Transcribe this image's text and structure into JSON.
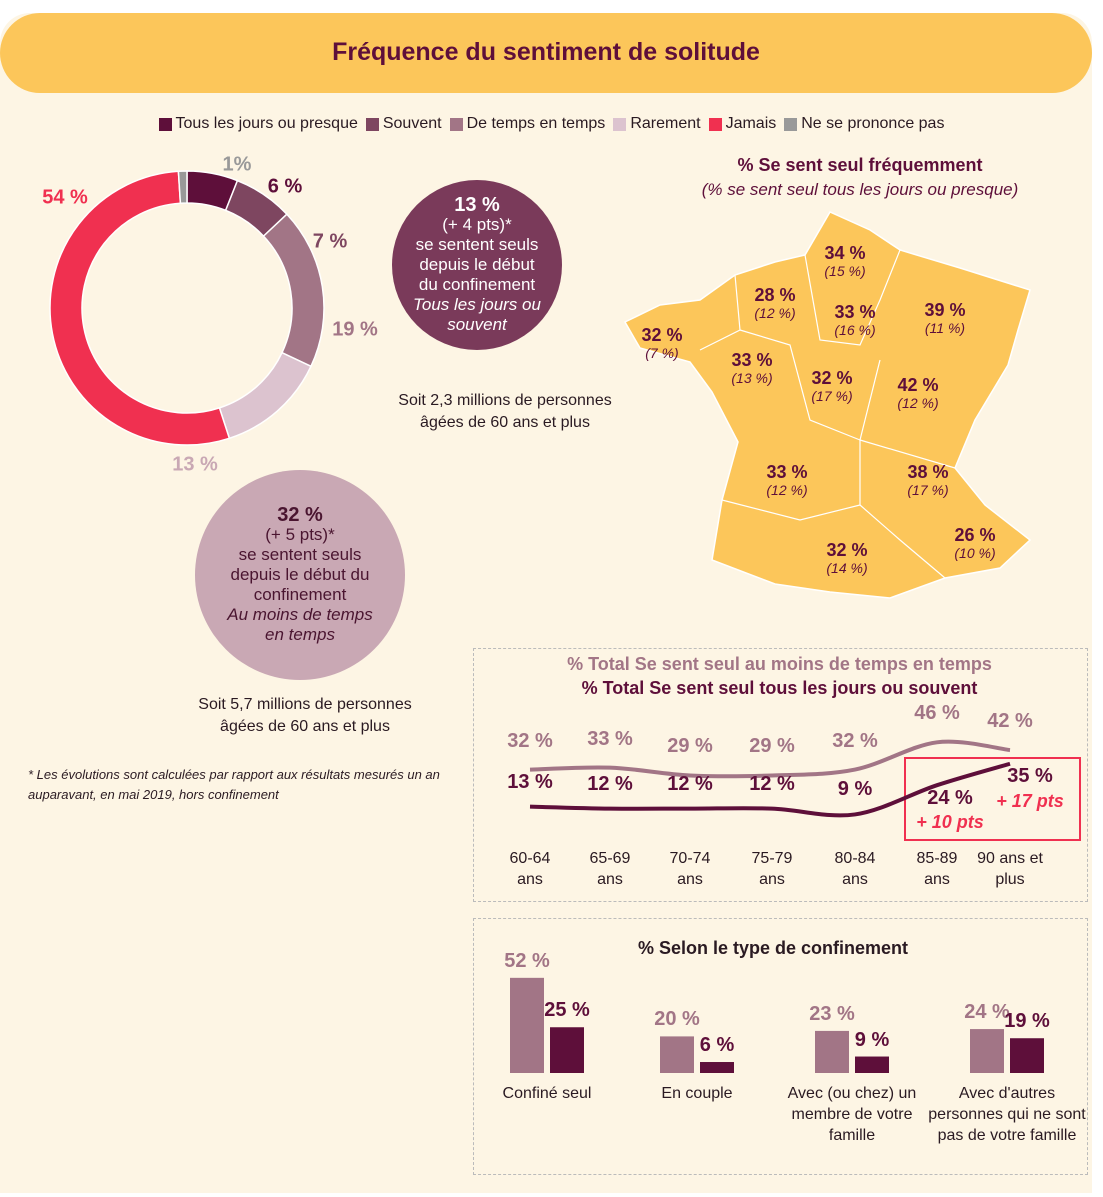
{
  "title": "Fréquence du sentiment de solitude",
  "chart_data": [
    {
      "type": "pie",
      "categories": [
        "Tous les jours ou presque",
        "Souvent",
        "De temps en temps",
        "Rarement",
        "Jamais",
        "Ne se prononce pas"
      ],
      "values": [
        6,
        7,
        19,
        13,
        54,
        1
      ],
      "value_labels": [
        "6 %",
        "7 %",
        "19 %",
        "13 %",
        "54 %",
        "1%"
      ],
      "colors": [
        "#5e0f3a",
        "#7e4660",
        "#a27586",
        "#dcc3cf",
        "#f03050",
        "#999999"
      ]
    },
    {
      "type": "line",
      "categories": [
        "60-64 ans",
        "65-69 ans",
        "70-74 ans",
        "75-79 ans",
        "80-84 ans",
        "85-89 ans",
        "90 ans et plus"
      ],
      "series": [
        {
          "name": "% Total Se sent seul au moins de temps en temps",
          "color": "#a27586",
          "values": [
            32,
            33,
            29,
            29,
            32,
            46,
            42
          ],
          "value_labels": [
            "32 %",
            "33 %",
            "29 %",
            "29 %",
            "32 %",
            "46 %",
            "42 %"
          ]
        },
        {
          "name": "% Total Se sent seul tous les jours ou souvent",
          "color": "#5e0f3a",
          "values": [
            13,
            12,
            12,
            12,
            9,
            24,
            35
          ],
          "value_labels": [
            "13 %",
            "12 %",
            "12 %",
            "12 %",
            "9 %",
            "24 %",
            "35 %"
          ]
        }
      ],
      "annotations": [
        null,
        null,
        null,
        null,
        null,
        "+ 10 pts",
        "+ 17 pts"
      ]
    },
    {
      "type": "bar",
      "title": "% Selon le type de confinement",
      "categories": [
        "Confiné seul",
        "En couple",
        "Avec (ou chez) un membre de votre famille",
        "Avec d'autres personnes qui ne sont pas de votre famille"
      ],
      "series": [
        {
          "color": "#a27586",
          "values": [
            52,
            20,
            23,
            24
          ],
          "value_labels": [
            "52 %",
            "20 %",
            "23 %",
            "24 %"
          ]
        },
        {
          "color": "#5e0f3a",
          "values": [
            25,
            6,
            9,
            19
          ],
          "value_labels": [
            "25 %",
            "6 %",
            "9 %",
            "19 %"
          ]
        }
      ]
    }
  ],
  "highlights": [
    {
      "figure": "13 %",
      "change": "(+ 4 pts)*",
      "text": "se sentent seuls depuis le début du confinement",
      "emphasis": "Tous les jours ou souvent",
      "note": "Soit 2,3 millions de personnes âgées de 60 ans et plus"
    },
    {
      "figure": "32 %",
      "change": "(+ 5 pts)*",
      "text": "se sentent seuls depuis le début du confinement",
      "emphasis": "Au moins de temps en temps",
      "note": "Soit 5,7 millions de personnes âgées de 60 ans et plus"
    }
  ],
  "map": {
    "title": "% Se sent seul fréquemment",
    "subtitle": "(% se sent seul tous les jours ou presque)",
    "regions": [
      {
        "value": "34 %",
        "detail": "(15 %)"
      },
      {
        "value": "28 %",
        "detail": "(12 %)"
      },
      {
        "value": "33 %",
        "detail": "(16 %)"
      },
      {
        "value": "39 %",
        "detail": "(11 %)"
      },
      {
        "value": "32 %",
        "detail": "(7 %)"
      },
      {
        "value": "33 %",
        "detail": "(13 %)"
      },
      {
        "value": "32 %",
        "detail": "(17 %)"
      },
      {
        "value": "42 %",
        "detail": "(12 %)"
      },
      {
        "value": "33 %",
        "detail": "(12 %)"
      },
      {
        "value": "38 %",
        "detail": "(17 %)"
      },
      {
        "value": "26 %",
        "detail": "(10 %)"
      },
      {
        "value": "32 %",
        "detail": "(14 %)"
      }
    ]
  },
  "footnote": "* Les évolutions sont calculées par rapport aux résultats mesurés un an auparavant, en mai 2019, hors confinement"
}
